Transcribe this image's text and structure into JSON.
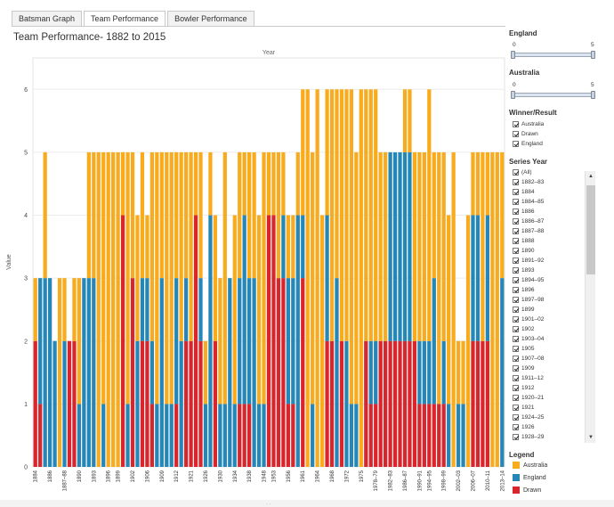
{
  "tabs": [
    {
      "label": "Batsman Graph",
      "active": false
    },
    {
      "label": "Team Performance",
      "active": true
    },
    {
      "label": "Bowler Performance",
      "active": false
    }
  ],
  "page_title": "Team Performance- 1882 to 2015",
  "filters": {
    "england": {
      "title": "England",
      "min": "0",
      "max": "5",
      "range": [
        0,
        5
      ]
    },
    "australia": {
      "title": "Australia",
      "min": "0",
      "max": "5",
      "range": [
        0,
        5
      ]
    },
    "winner_result": {
      "title": "Winner/Result",
      "items": [
        "Australia",
        "Drawn",
        "England"
      ]
    },
    "series_year": {
      "title": "Series Year",
      "items": [
        "(All)",
        "1882–83",
        "1884",
        "1884–85",
        "1886",
        "1886–87",
        "1887–88",
        "1888",
        "1890",
        "1891–92",
        "1893",
        "1894–95",
        "1896",
        "1897–98",
        "1899",
        "1901–02",
        "1902",
        "1903–04",
        "1905",
        "1907–08",
        "1909",
        "1911–12",
        "1912",
        "1920–21",
        "1921",
        "1924–25",
        "1926",
        "1928–29"
      ]
    }
  },
  "legend": {
    "title": "Legend",
    "items": [
      {
        "label": "Australia",
        "color": "#f9ab1e"
      },
      {
        "label": "England",
        "color": "#2487b8"
      },
      {
        "label": "Drawn",
        "color": "#d9252c"
      }
    ]
  },
  "chart_data": {
    "type": "bar",
    "stacked": true,
    "title": "Team Performance- 1882 to 2015",
    "top_axis_label": "Year",
    "ylabel": "Value",
    "ylim": [
      0,
      6.5
    ],
    "yticks": [
      "0",
      "1",
      "2",
      "3",
      "4",
      "5",
      "6"
    ],
    "grid": true,
    "stack_order": [
      "Drawn",
      "England",
      "Australia"
    ],
    "colors": {
      "Drawn": "#d9252c",
      "England": "#2487b8",
      "Australia": "#f9ab1e"
    },
    "x_labels": [
      "1884",
      "1886",
      "1887–88",
      "1890",
      "1893",
      "1896",
      "1899",
      "1902",
      "1906",
      "1909",
      "1912",
      "1921",
      "1926",
      "1930",
      "1934",
      "1938",
      "1948",
      "1953",
      "1956",
      "1961",
      "1964",
      "1968",
      "1972",
      "1975",
      "1978–79",
      "1982–83",
      "1986–87",
      "1990–91",
      "1994–95",
      "1998–99",
      "2002–03",
      "2006–07",
      "2010–11",
      "2013–14"
    ],
    "series": [
      {
        "name": "Drawn",
        "values": [
          2,
          1,
          0,
          0,
          0,
          0,
          0,
          2,
          2,
          0,
          0,
          0,
          0,
          0,
          0,
          0,
          0,
          0,
          4,
          0,
          3,
          0,
          2,
          2,
          1,
          0,
          0,
          0,
          0,
          1,
          0,
          2,
          2,
          4,
          2,
          0,
          0,
          2,
          0,
          0,
          0,
          0,
          1,
          1,
          1,
          0,
          0,
          0,
          4,
          4,
          3,
          3,
          1,
          1,
          0,
          3,
          0,
          0,
          0,
          0,
          2,
          2,
          0,
          2,
          0,
          0,
          0,
          0,
          2,
          1,
          1,
          2,
          2,
          2,
          2,
          2,
          2,
          2,
          2,
          1,
          1,
          1,
          1,
          1,
          1,
          0,
          0,
          0,
          0,
          0,
          2,
          2,
          2,
          2,
          0,
          0,
          0
        ]
      },
      {
        "name": "England",
        "values": [
          0,
          2,
          3,
          3,
          2,
          0,
          2,
          0,
          0,
          1,
          3,
          3,
          3,
          0,
          1,
          0,
          0,
          0,
          0,
          1,
          0,
          2,
          1,
          1,
          1,
          1,
          3,
          1,
          1,
          2,
          2,
          1,
          0,
          0,
          1,
          1,
          4,
          0,
          1,
          1,
          3,
          1,
          2,
          3,
          2,
          3,
          1,
          1,
          0,
          0,
          0,
          1,
          2,
          2,
          4,
          1,
          0,
          1,
          0,
          0,
          2,
          0,
          3,
          0,
          2,
          1,
          1,
          0,
          0,
          1,
          1,
          0,
          0,
          3,
          3,
          3,
          3,
          3,
          0,
          1,
          1,
          1,
          2,
          0,
          1,
          1,
          0,
          1,
          1,
          0,
          2,
          2,
          0,
          2,
          0,
          0,
          3
        ]
      },
      {
        "name": "Australia",
        "values": [
          1,
          0,
          2,
          0,
          0,
          3,
          1,
          0,
          1,
          2,
          0,
          2,
          2,
          5,
          4,
          5,
          5,
          5,
          1,
          4,
          2,
          2,
          2,
          1,
          3,
          4,
          2,
          4,
          4,
          2,
          3,
          2,
          3,
          1,
          2,
          1,
          1,
          2,
          2,
          4,
          0,
          3,
          2,
          1,
          2,
          2,
          3,
          4,
          1,
          1,
          2,
          1,
          1,
          1,
          1,
          2,
          6,
          4,
          6,
          4,
          2,
          4,
          3,
          4,
          4,
          5,
          4,
          6,
          4,
          4,
          4,
          3,
          3,
          0,
          0,
          0,
          1,
          1,
          3,
          3,
          3,
          4,
          2,
          4,
          3,
          3,
          5,
          1,
          1,
          4,
          1,
          1,
          3,
          1,
          5,
          5,
          2
        ]
      }
    ]
  }
}
